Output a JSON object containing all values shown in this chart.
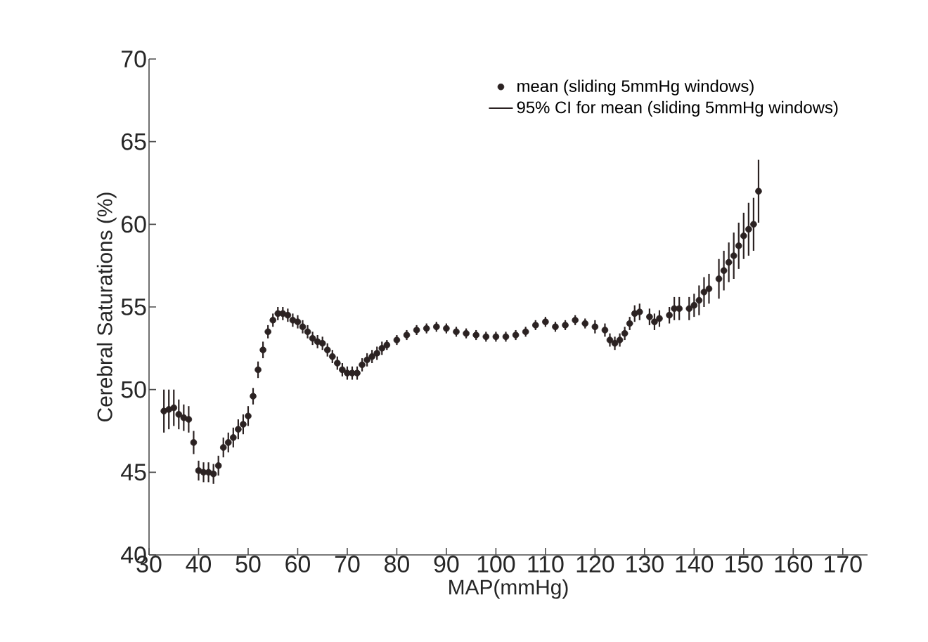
{
  "chart_data": {
    "type": "scatter",
    "xlabel": "MAP(mmHg)",
    "ylabel": "Cerebral Saturations (%)",
    "xlim": [
      30,
      175
    ],
    "ylim": [
      40,
      70
    ],
    "xticks": [
      30,
      40,
      50,
      60,
      70,
      80,
      90,
      100,
      110,
      120,
      130,
      140,
      150,
      160,
      170
    ],
    "yticks": [
      40,
      45,
      50,
      55,
      60,
      65,
      70
    ],
    "grid": false,
    "legend": "top right",
    "marker": "circle",
    "annotations": [
      "95% CI for mean (sliding 5mmHg windows)"
    ],
    "series": [
      {
        "name": "mean (sliding 5mmHg windows)",
        "color": "#2b2222",
        "x": [
          33,
          34,
          35,
          36,
          37,
          38,
          39,
          40,
          41,
          42,
          43,
          44,
          45,
          46,
          47,
          48,
          49,
          50,
          51,
          52,
          53,
          54,
          55,
          56,
          57,
          58,
          59,
          60,
          61,
          62,
          63,
          64,
          65,
          66,
          67,
          68,
          69,
          70,
          71,
          72,
          73,
          74,
          75,
          76,
          77,
          78,
          80,
          82,
          84,
          86,
          88,
          90,
          92,
          94,
          96,
          98,
          100,
          102,
          104,
          106,
          108,
          110,
          112,
          114,
          116,
          118,
          120,
          122,
          123,
          124,
          125,
          126,
          127,
          128,
          129,
          131,
          132,
          133,
          135,
          136,
          137,
          139,
          140,
          141,
          142,
          143,
          145,
          146,
          147,
          148,
          149,
          150,
          151,
          152,
          153
        ],
        "values": [
          48.7,
          48.8,
          48.9,
          48.5,
          48.3,
          48.2,
          46.8,
          45.1,
          45.0,
          45.0,
          44.9,
          45.4,
          46.5,
          46.8,
          47.1,
          47.6,
          47.9,
          48.4,
          49.6,
          51.2,
          52.4,
          53.5,
          54.2,
          54.6,
          54.6,
          54.5,
          54.2,
          54.1,
          53.8,
          53.5,
          53.1,
          52.9,
          52.8,
          52.4,
          52.0,
          51.6,
          51.2,
          51.0,
          51.0,
          51.0,
          51.5,
          51.8,
          52.0,
          52.2,
          52.5,
          52.7,
          53.0,
          53.3,
          53.6,
          53.7,
          53.8,
          53.7,
          53.5,
          53.4,
          53.3,
          53.2,
          53.2,
          53.2,
          53.3,
          53.5,
          53.9,
          54.1,
          53.8,
          53.9,
          54.2,
          54.0,
          53.8,
          53.6,
          53.0,
          52.8,
          53.0,
          53.4,
          54.0,
          54.6,
          54.7,
          54.4,
          54.1,
          54.3,
          54.5,
          54.9,
          54.9,
          54.9,
          55.1,
          55.4,
          55.9,
          56.1,
          56.7,
          57.2,
          57.7,
          58.1,
          58.7,
          59.3,
          59.7,
          60.0,
          62.0
        ],
        "errors": [
          1.3,
          1.2,
          1.1,
          0.9,
          0.8,
          0.8,
          0.7,
          0.6,
          0.6,
          0.6,
          0.6,
          0.6,
          0.6,
          0.6,
          0.6,
          0.6,
          0.6,
          0.6,
          0.5,
          0.5,
          0.5,
          0.4,
          0.4,
          0.4,
          0.4,
          0.4,
          0.4,
          0.4,
          0.4,
          0.4,
          0.4,
          0.4,
          0.4,
          0.4,
          0.4,
          0.4,
          0.4,
          0.4,
          0.4,
          0.4,
          0.4,
          0.4,
          0.4,
          0.4,
          0.4,
          0.3,
          0.3,
          0.3,
          0.3,
          0.3,
          0.3,
          0.3,
          0.3,
          0.3,
          0.3,
          0.3,
          0.3,
          0.3,
          0.3,
          0.3,
          0.3,
          0.3,
          0.3,
          0.3,
          0.3,
          0.3,
          0.4,
          0.4,
          0.4,
          0.4,
          0.4,
          0.4,
          0.4,
          0.5,
          0.5,
          0.5,
          0.5,
          0.5,
          0.5,
          0.7,
          0.7,
          0.7,
          0.7,
          0.9,
          0.9,
          0.9,
          1.2,
          1.2,
          1.2,
          1.4,
          1.4,
          1.4,
          1.6,
          1.6,
          1.9
        ]
      }
    ]
  }
}
